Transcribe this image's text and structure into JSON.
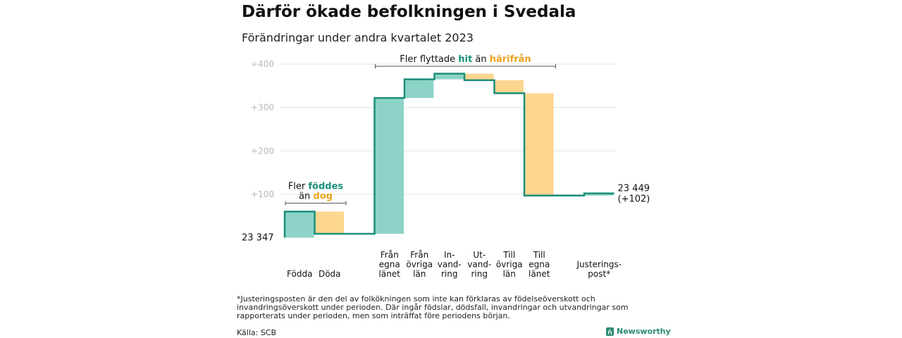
{
  "chart_data": {
    "type": "waterfall",
    "title": "Därför ökade befolkningen i Svedala",
    "subtitle": "Förändringar under andra kvartalet 2023",
    "baseline_label": "23 347",
    "end_label": [
      "23 449",
      "(+102)"
    ],
    "yticks": [
      "+100",
      "+200",
      "+300",
      "+400"
    ],
    "ylim": [
      0,
      400
    ],
    "colors": {
      "increase": "#8dd3c7",
      "decrease": "#fdd68f",
      "line": "#1a8f7a",
      "label_green": "#1a8f7a",
      "label_orange": "#e8a21b"
    },
    "steps": [
      {
        "category": "Födda",
        "label_lines": [
          "Födda"
        ],
        "value": 60,
        "start": 0,
        "end": 60,
        "kind": "increase"
      },
      {
        "category": "Döda",
        "label_lines": [
          "Döda"
        ],
        "value": -51,
        "start": 60,
        "end": 9,
        "kind": "decrease"
      },
      {
        "category": "",
        "label_lines": [],
        "value": 0,
        "start": 9,
        "end": 9,
        "kind": "none"
      },
      {
        "category": "Från egna länet",
        "label_lines": [
          "Från",
          "egna",
          "länet"
        ],
        "value": 313,
        "start": 9,
        "end": 322,
        "kind": "increase"
      },
      {
        "category": "Från övriga län",
        "label_lines": [
          "Från",
          "övriga",
          "län"
        ],
        "value": 43,
        "start": 322,
        "end": 365,
        "kind": "increase"
      },
      {
        "category": "Invandring",
        "label_lines": [
          "In-",
          "vand-",
          "ring"
        ],
        "value": 13,
        "start": 365,
        "end": 378,
        "kind": "increase"
      },
      {
        "category": "Utvandring",
        "label_lines": [
          "Ut-",
          "vand-",
          "ring"
        ],
        "value": -15,
        "start": 378,
        "end": 363,
        "kind": "decrease"
      },
      {
        "category": "Till övriga län",
        "label_lines": [
          "Till",
          "övriga",
          "län"
        ],
        "value": -30,
        "start": 363,
        "end": 333,
        "kind": "decrease"
      },
      {
        "category": "Till egna länet",
        "label_lines": [
          "Till",
          "egna",
          "länet"
        ],
        "value": -236,
        "start": 333,
        "end": 97,
        "kind": "decrease"
      },
      {
        "category": "",
        "label_lines": [],
        "value": 0,
        "start": 97,
        "end": 97,
        "kind": "none"
      },
      {
        "category": "Justeringspost*",
        "label_lines": [
          "Justerings-",
          "post*"
        ],
        "value": 5,
        "start": 97,
        "end": 102,
        "kind": "increase"
      }
    ],
    "annotations": [
      {
        "lines": [
          [
            {
              "t": "Fler ",
              "c": "dark"
            },
            {
              "t": "föddes",
              "c": "green"
            }
          ],
          [
            {
              "t": "än ",
              "c": "dark"
            },
            {
              "t": "dog",
              "c": "orange"
            }
          ]
        ],
        "from_step": 0,
        "to_step": 1
      },
      {
        "lines": [
          [
            {
              "t": "Fler flyttade ",
              "c": "dark"
            },
            {
              "t": "hit",
              "c": "green"
            },
            {
              "t": "  än ",
              "c": "dark"
            },
            {
              "t": "härifrån",
              "c": "orange"
            }
          ]
        ],
        "from_step": 3,
        "to_step": 8
      }
    ]
  },
  "footnote": "*Justeringsposten är den del av folkökningen som inte kan förklaras av födelseöverskott och invandringsöverskott under perioden. Där ingår födslar, dödsfall, invandringar och utvandringar som rapporterats under perioden, men som inträffat före periodens början.",
  "source": "Källa: SCB",
  "brand": "Newsworthy"
}
